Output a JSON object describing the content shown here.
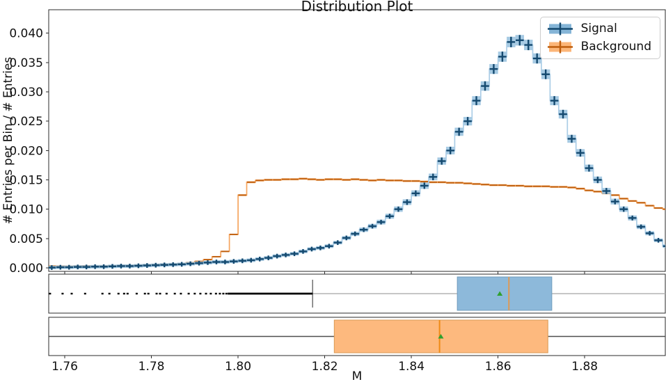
{
  "figure": {
    "title": "Distribution Plot",
    "xlabel": "M",
    "ylabel": "# Entries per Bin / # Entries",
    "legend": {
      "position": "upper right",
      "items": [
        {
          "label": "Signal",
          "fill": "#85b5d7",
          "cross": "#14496f"
        },
        {
          "label": "Background",
          "fill": "#fcb678",
          "cross": "#bf5e0d"
        }
      ]
    }
  },
  "chart_data": [
    {
      "type": "bar",
      "subtype": "step-histogram-with-errorbars",
      "title": "Distribution Plot",
      "xlabel": "M",
      "ylabel": "# Entries per Bin / # Entries",
      "xlim": [
        1.7563,
        1.8986
      ],
      "ylim": [
        -0.0006,
        0.044
      ],
      "x_ticks": [
        1.76,
        1.78,
        1.8,
        1.82,
        1.84,
        1.86,
        1.88
      ],
      "y_ticks": [
        0.0,
        0.005,
        0.01,
        0.015,
        0.02,
        0.025,
        0.03,
        0.035,
        0.04
      ],
      "grid": false,
      "legend_position": "upper right",
      "bin_start_center": 1.757,
      "bin_step": 0.002,
      "series": [
        {
          "name": "Signal",
          "colors": {
            "step": "#abcde6",
            "errbox": "#96c1de",
            "marker": "#14496f"
          },
          "err_n": 48000,
          "values": [
            5e-05,
            0.0001,
            0.0001,
            0.00015,
            0.00015,
            0.0002,
            0.0002,
            0.00025,
            0.0003,
            0.0003,
            0.00035,
            0.0004,
            0.00045,
            0.0005,
            0.00055,
            0.0006,
            0.0007,
            0.0008,
            0.0009,
            0.001,
            0.001,
            0.0011,
            0.0012,
            0.0013,
            0.0015,
            0.0017,
            0.002,
            0.0022,
            0.0024,
            0.0028,
            0.0032,
            0.0034,
            0.0037,
            0.0043,
            0.0051,
            0.0058,
            0.0065,
            0.0071,
            0.0078,
            0.0088,
            0.01,
            0.0112,
            0.0127,
            0.014,
            0.0155,
            0.0182,
            0.02,
            0.0232,
            0.025,
            0.0285,
            0.031,
            0.0339,
            0.036,
            0.0385,
            0.0388,
            0.038,
            0.0357,
            0.033,
            0.0285,
            0.0262,
            0.022,
            0.0196,
            0.017,
            0.015,
            0.0131,
            0.0113,
            0.01,
            0.0085,
            0.007,
            0.0059,
            0.0047,
            0.0037
          ]
        },
        {
          "name": "Background",
          "colors": {
            "step": "#f6a55f",
            "errbox": "#f9c088",
            "marker": "#bf5e0d"
          },
          "err_n": 420000,
          "values": [
            0.0003,
            0.0003,
            0.00028,
            0.0003,
            0.00032,
            0.0003,
            0.00033,
            0.00035,
            0.0004,
            0.0004,
            0.00045,
            0.0005,
            0.00055,
            0.0006,
            0.00065,
            0.0007,
            0.0009,
            0.0011,
            0.0014,
            0.0019,
            0.0028,
            0.0057,
            0.0124,
            0.0146,
            0.0149,
            0.015,
            0.015,
            0.0151,
            0.0151,
            0.0152,
            0.0151,
            0.015,
            0.0151,
            0.0151,
            0.015,
            0.0151,
            0.015,
            0.0149,
            0.015,
            0.0149,
            0.0149,
            0.0148,
            0.0148,
            0.0147,
            0.0146,
            0.0146,
            0.0145,
            0.0145,
            0.0144,
            0.0143,
            0.0142,
            0.0141,
            0.0141,
            0.014,
            0.014,
            0.0139,
            0.0139,
            0.0139,
            0.0138,
            0.0138,
            0.0137,
            0.0135,
            0.0132,
            0.013,
            0.0127,
            0.0124,
            0.0118,
            0.0114,
            0.0111,
            0.0106,
            0.0102,
            0.01
          ]
        }
      ]
    },
    {
      "type": "boxplot",
      "series": "Signal",
      "orientation": "horizontal",
      "whisker_low": 1.8172,
      "q1": 1.8506,
      "median": 1.8625,
      "q3": 1.8724,
      "whisker_high": 1.8986,
      "mean": 1.8604,
      "fliers": [
        1.7566,
        1.7595,
        1.7616,
        1.7647,
        1.7687,
        1.7703,
        1.7724,
        1.7737,
        1.7745,
        1.7766,
        1.7785,
        1.7793,
        1.7812,
        1.782,
        1.7835,
        1.7854,
        1.7868,
        1.7886,
        1.79,
        1.7913,
        1.7926,
        1.7937,
        1.7949,
        1.7958,
        1.7966,
        1.7973
      ],
      "flier_dense_range": [
        1.7976,
        1.8172
      ],
      "colors": {
        "box": "#8db9da",
        "box_edge": "#6f9cbd",
        "median": "#dd9a57",
        "whisker": "#b3b3b3",
        "cap": "#5a5a5a",
        "flier": "#000000",
        "mean": "#2fa02f"
      }
    },
    {
      "type": "boxplot",
      "series": "Background",
      "orientation": "horizontal",
      "whisker_low": 1.7563,
      "q1": 1.8222,
      "median": 1.8465,
      "q3": 1.8715,
      "whisker_high": 1.8986,
      "mean": 1.8468,
      "fliers": [],
      "colors": {
        "box": "#fdb97e",
        "box_edge": "#d99a55",
        "median": "#ef8b17",
        "whisker": "#4d4d4d",
        "cap": "#4d4d4d",
        "flier": "#000000",
        "mean": "#2fa02f"
      }
    }
  ]
}
